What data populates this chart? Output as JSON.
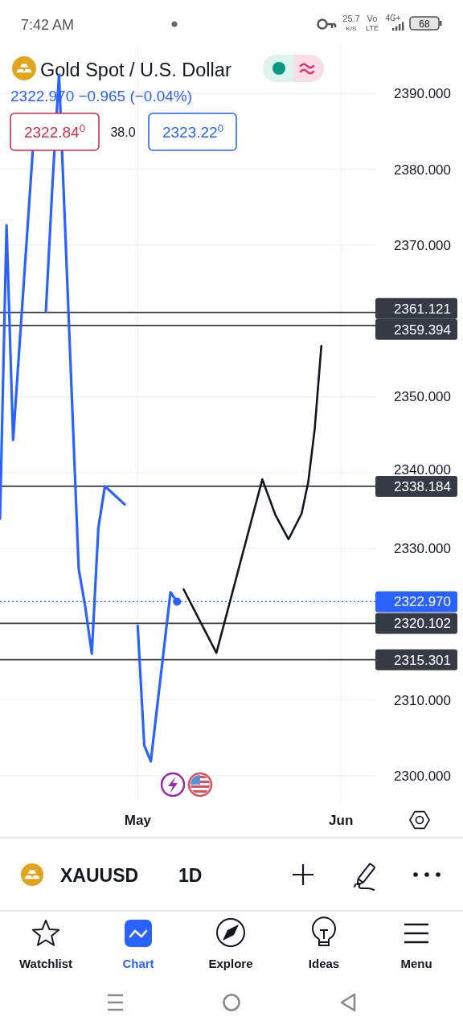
{
  "chart_data": {
    "type": "line",
    "title": "Gold Spot / U.S. Dollar",
    "subtitle": "2322.970 −0.965 (−0.04%)",
    "x": [
      "--04-10",
      "--04-11",
      "--04-12",
      "--04-15",
      "--04-16",
      "--04-17",
      "--04-18",
      "--04-19",
      "--04-22",
      "--04-23",
      "--04-24",
      "--04-25",
      "--04-26",
      "--04-29",
      "--04-30",
      "--05-01",
      "--05-02",
      "--05-03",
      "--05-06",
      "--05-07"
    ],
    "series": [
      {
        "color": "#2962ff",
        "values": [
          2333.9,
          2372.6,
          2344.3,
          2382.5,
          null,
          2361.3,
          2378.0,
          2392.5,
          2327.3,
          2322.3,
          2316.1,
          2332.7,
          2338.2,
          2335.8,
          null,
          2319.8,
          2304.0,
          2301.9,
          2324.2,
          2322.97
        ]
      },
      {
        "type": "line",
        "color": "#131722",
        "x": [
          "--05-08",
          "--05-13",
          "--05-20",
          "--05-22",
          "--05-24",
          "--05-26",
          "--05-27",
          "--05-28",
          "--05-29"
        ],
        "values": [
          2324.6,
          2316.2,
          2339.1,
          2334.4,
          2331.2,
          2334.6,
          2338.7,
          2345.8,
          2356.7
        ]
      },
      {
        "type": "scatter",
        "color": "#2962ff",
        "marker": "circle",
        "x": [
          "--05-07"
        ],
        "values": [
          2322.97
        ]
      }
    ],
    "xlim": [
      "--04-10",
      "--06-06"
    ],
    "xticks": [
      {
        "value": "--05-01",
        "label": "May"
      },
      {
        "value": "--06-01",
        "label": "Jun"
      }
    ],
    "ylim": [
      2296.6,
      2396.3
    ],
    "yticks": [
      {
        "value": 2300,
        "label": "2300.000"
      },
      {
        "value": 2310,
        "label": "2310.000"
      },
      {
        "value": 2330,
        "label": "2330.000"
      },
      {
        "value": 2340,
        "label": "2340.000"
      },
      {
        "value": 2350,
        "label": "2350.000"
      },
      {
        "value": 2370,
        "label": "2370.000"
      },
      {
        "value": 2380,
        "label": "2380.000"
      },
      {
        "value": 2390,
        "label": "2390.000"
      }
    ],
    "grid": true,
    "ref_lines": [
      {
        "axis": "y",
        "value": 2361.121,
        "label": "2361.121",
        "color": "#363a45"
      },
      {
        "axis": "y",
        "value": 2359.394,
        "label": "2359.394",
        "color": "#363a45"
      },
      {
        "axis": "y",
        "value": 2338.184,
        "label": "2338.184",
        "color": "#363a45"
      },
      {
        "axis": "y",
        "value": 2322.97,
        "label": "2322.970",
        "color": "#2962ff",
        "line_style": "dotted"
      },
      {
        "axis": "y",
        "value": 2320.102,
        "label": "2320.102",
        "color": "#363a45"
      },
      {
        "axis": "y",
        "value": 2315.301,
        "label": "2315.301",
        "color": "#363a45"
      }
    ],
    "annotations": [
      "7:42 AM",
      "25.7",
      "K/S",
      "Vo",
      "LTE",
      "4G+",
      "68",
      "2322.84$^{0}$",
      "38.0",
      "2323.22$^{0}$",
      "XAUUSD",
      "1D",
      "Watchlist",
      "Chart",
      "Explore",
      "Ideas",
      "Menu"
    ]
  }
}
